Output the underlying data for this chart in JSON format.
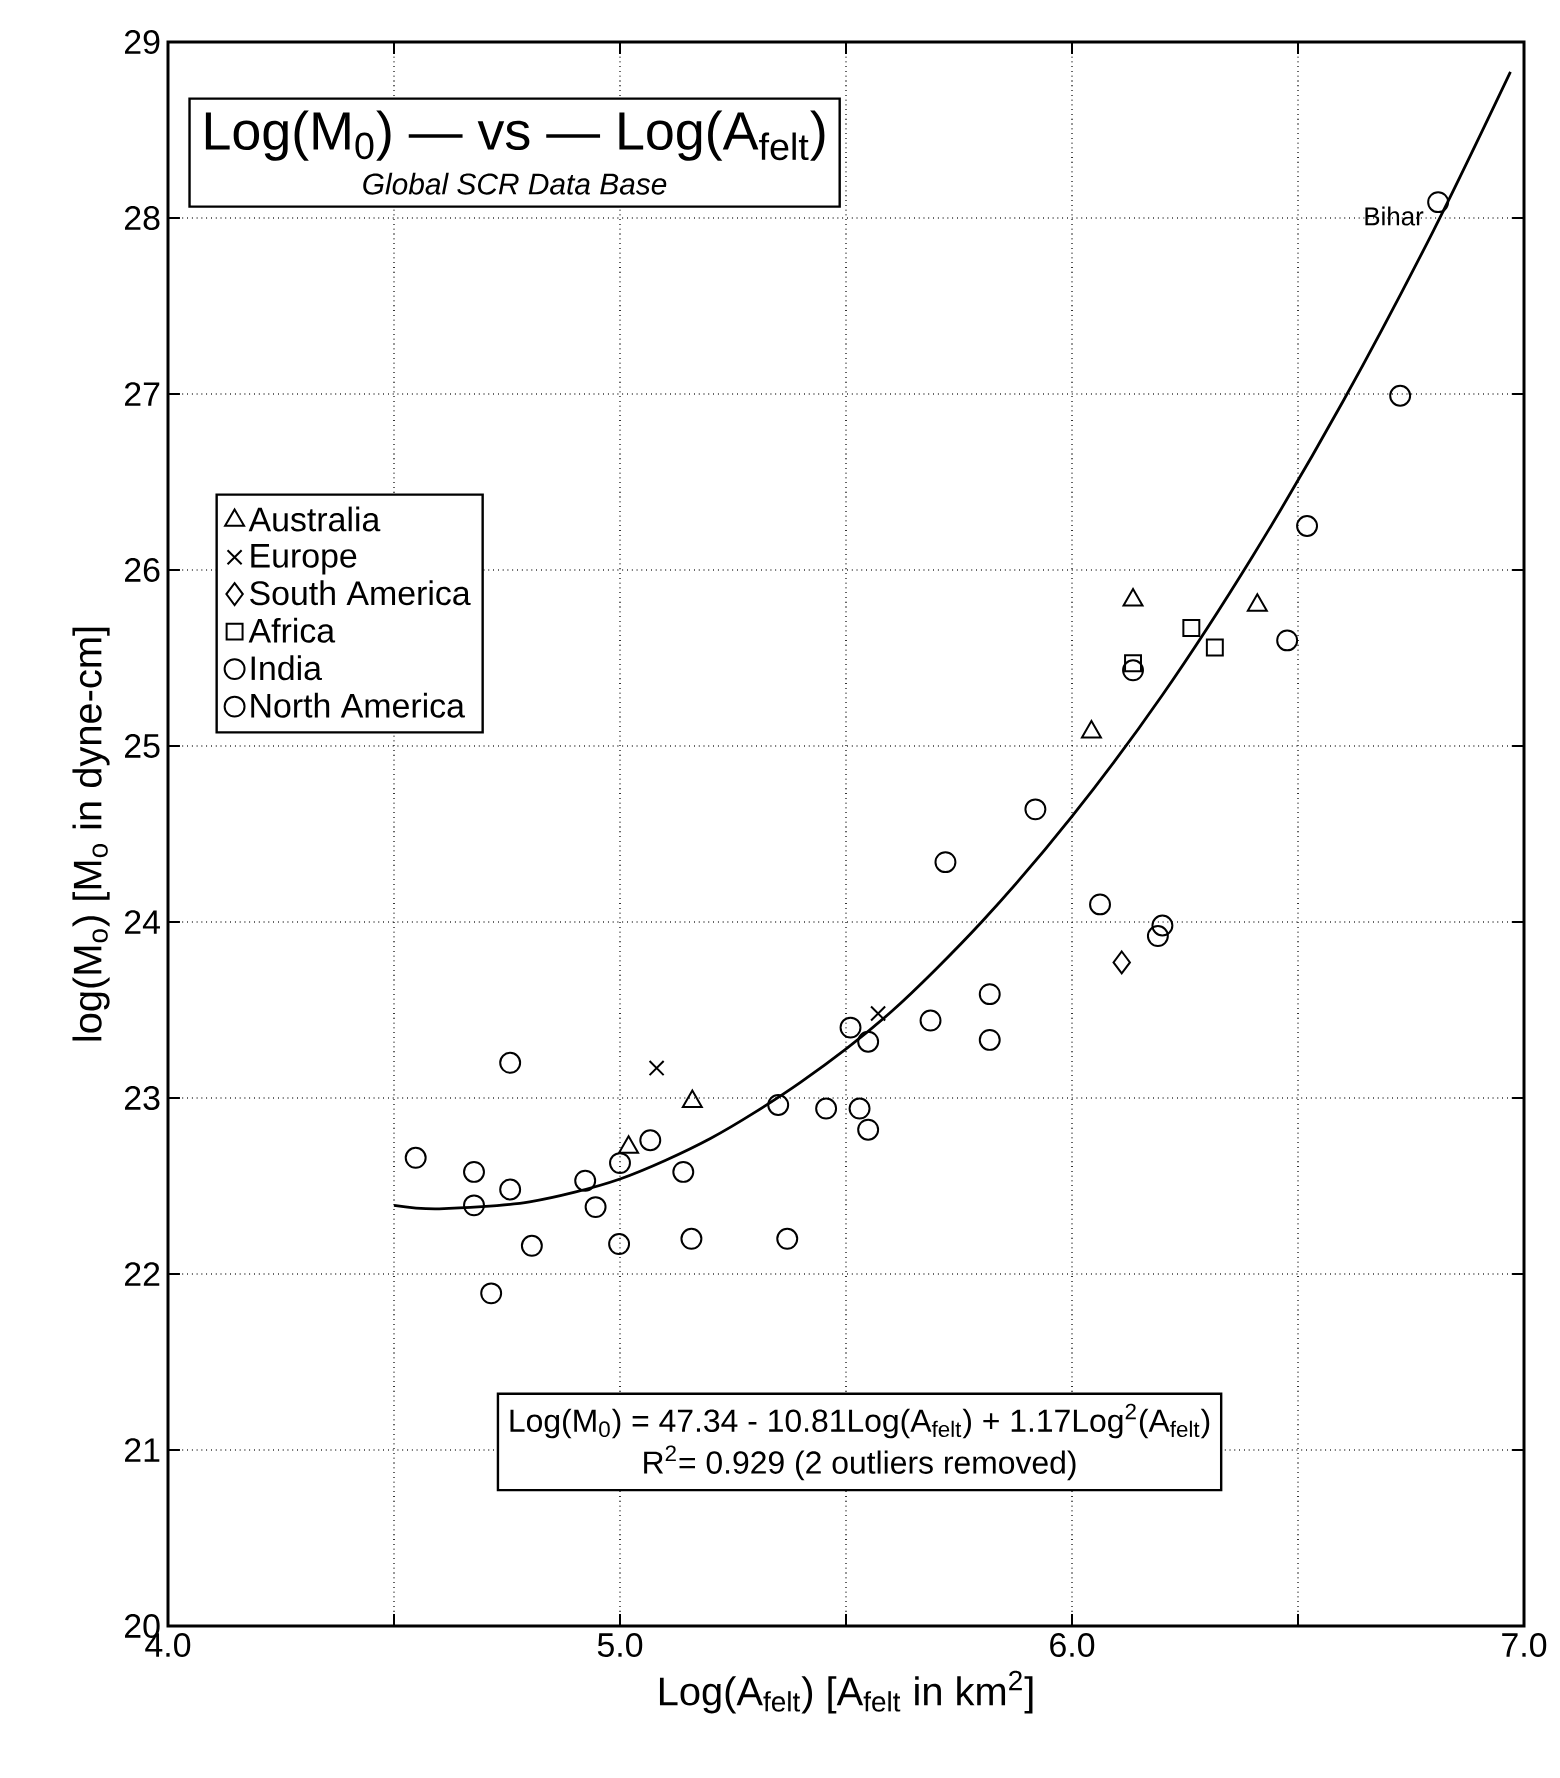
{
  "chart_data": {
    "type": "scatter",
    "title": "Log(M$_{0}$) — vs — Log(A$_{felt}$)",
    "subtitle": "Global SCR Data Base",
    "xlabel": "Log(A$_{felt}$)   [A$_{felt}$ in km$^{2}$]",
    "ylabel": "log(M$_{o}$)   [M$_{o}$ in dyne-cm]",
    "xlim": [
      4.0,
      7.0
    ],
    "ylim": [
      20,
      29
    ],
    "xticks": [
      {
        "value": 4.0,
        "label": "4.0"
      },
      {
        "value": 4.5,
        "label": null
      },
      {
        "value": 5.0,
        "label": "5.0"
      },
      {
        "value": 5.5,
        "label": null
      },
      {
        "value": 6.0,
        "label": "6.0"
      },
      {
        "value": 6.5,
        "label": null
      },
      {
        "value": 7.0,
        "label": "7.0"
      }
    ],
    "yticks": [
      20,
      21,
      22,
      23,
      24,
      25,
      26,
      27,
      28,
      29
    ],
    "grid": true,
    "legend": "top left",
    "series": [
      {
        "name": "Australia",
        "marker": "triangle",
        "color": "#000000",
        "x": [
          6.135,
          6.41,
          6.043,
          5.16,
          5.019
        ],
        "values": [
          25.83,
          25.8,
          25.08,
          22.98,
          22.72
        ]
      },
      {
        "name": "Europe",
        "marker": "cross",
        "color": "#000000",
        "x": [
          5.081,
          5.571
        ],
        "values": [
          23.17,
          23.48
        ]
      },
      {
        "name": "South America",
        "marker": "diamond",
        "color": "#000000",
        "x": [
          6.11
        ],
        "values": [
          23.77
        ]
      },
      {
        "name": "Africa",
        "marker": "square",
        "color": "#000000",
        "x": [
          6.264,
          6.316,
          6.135
        ],
        "values": [
          25.67,
          25.56,
          25.47
        ]
      },
      {
        "name": "India",
        "marker": "circle",
        "color": "#000000",
        "x": [
          6.135,
          6.81
        ],
        "values": [
          25.43,
          28.09
        ]
      },
      {
        "name": "North America",
        "marker": "circle",
        "color": "#000000",
        "x": [
          4.548,
          4.677,
          4.677,
          4.757,
          4.757,
          4.715,
          4.805,
          4.923,
          4.946,
          5.0,
          4.998,
          5.067,
          5.14,
          5.158,
          5.35,
          5.37,
          5.456,
          5.53,
          5.549,
          5.51,
          5.549,
          5.687,
          5.818,
          5.818,
          5.72,
          5.919,
          6.062,
          6.2,
          6.19,
          6.476,
          6.726,
          6.52
        ],
        "values": [
          22.66,
          22.58,
          22.39,
          23.2,
          22.48,
          21.89,
          22.16,
          22.53,
          22.38,
          22.63,
          22.17,
          22.76,
          22.58,
          22.2,
          22.96,
          22.2,
          22.94,
          22.94,
          22.82,
          23.4,
          23.32,
          23.44,
          23.33,
          23.59,
          24.34,
          24.64,
          24.1,
          23.98,
          23.92,
          25.6,
          26.99,
          26.25
        ]
      },
      {
        "type": "line",
        "color": "#000000",
        "x": [
          4.5,
          4.6,
          4.8,
          5.0,
          5.2,
          5.4,
          5.6,
          5.8,
          6.0,
          6.2,
          6.4,
          6.6,
          6.8,
          6.97
        ],
        "values": [
          22.39,
          22.37,
          22.41,
          22.54,
          22.77,
          23.09,
          23.49,
          24.0,
          24.6,
          25.29,
          26.08,
          26.96,
          27.93,
          28.83
        ]
      }
    ],
    "annotations": [
      {
        "text": "Bihar",
        "x": 6.81,
        "y": 28.09
      },
      "Log(M$_{0}$) = 47.34 - 10.81Log(A$_{felt}$) + 1.17Log$^{2}$(A$_{felt}$)",
      "R$^{2}$= 0.929   (2 outliers removed)"
    ]
  }
}
